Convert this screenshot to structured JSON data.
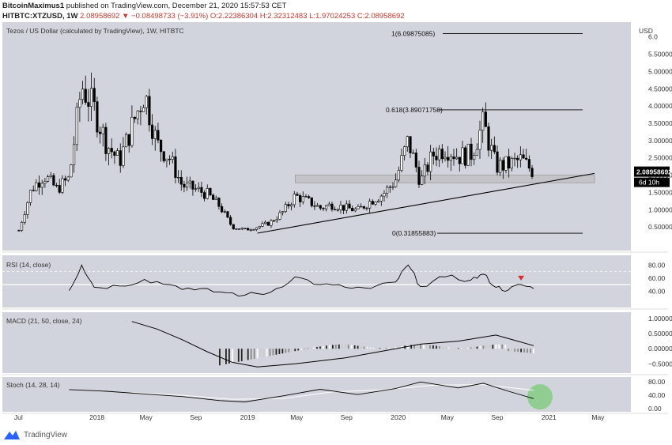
{
  "header": {
    "publisher": "BitcoinMaximus1",
    "published_text": "published on TradingView.com, December 21, 2020 15:57:53 CET",
    "symbol": "HITBTC:XTZUSD, 1W",
    "last": "2.08958692",
    "change": "−0.08498733 (−3.91%)",
    "open": "O:2.22386304",
    "high": "H:2.32312483",
    "low": "L:1.97024253",
    "close": "C:2.08958692"
  },
  "footer": {
    "brand": "TradingView"
  },
  "colors": {
    "pane_bg": "#d1d4dc",
    "candle": "#000000",
    "accent_red": "#d0312d",
    "highlight_green": "#7ecb7e"
  },
  "chart_data": [
    {
      "type": "candlestick",
      "title": "Tezos / US Dollar (calculated by TradingView), 1W, HITBTC",
      "ylabel": "USD",
      "ylim": [
        0,
        6.2
      ],
      "yticks": [
        "6.0",
        "5.50000000",
        "5.00000000",
        "4.50000000",
        "4.00000000",
        "3.50000000",
        "3.00000000",
        "2.50000000",
        "2.00000000",
        "1.50000000",
        "1.00000000",
        "0.50000000"
      ],
      "last_price_label": "2.08958692",
      "countdown_label": "6d 10h",
      "x_ticks": [
        "Jul",
        "2018",
        "May",
        "Sep",
        "2019",
        "May",
        "Sep",
        "2020",
        "May",
        "Sep",
        "2021",
        "May"
      ],
      "fib_levels": [
        {
          "label": "1(6.09875085)",
          "value": 6.09875085
        },
        {
          "label": "0.618(3.89071750)",
          "value": 3.8907175
        },
        {
          "label": "0(0.31855883)",
          "value": 0.31855883
        }
      ],
      "support_zone": {
        "low": 1.78,
        "high": 2.0,
        "start": "2019-05"
      },
      "ascending_trendline": {
        "from": [
          "2019-02",
          0.32
        ],
        "to": [
          "2021-03",
          2.05
        ]
      },
      "price_path": [
        [
          "2017-07",
          0.4
        ],
        [
          "2017-08",
          1.6
        ],
        [
          "2017-09",
          2.0
        ],
        [
          "2017-10",
          1.6
        ],
        [
          "2017-11",
          1.9
        ],
        [
          "2017-12",
          4.6
        ],
        [
          "2018-01",
          3.9
        ],
        [
          "2018-02",
          2.9
        ],
        [
          "2018-03",
          2.4
        ],
        [
          "2018-04",
          3.4
        ],
        [
          "2018-05",
          4.4
        ],
        [
          "2018-06",
          2.9
        ],
        [
          "2018-07",
          2.5
        ],
        [
          "2018-08",
          1.7
        ],
        [
          "2018-09",
          1.6
        ],
        [
          "2018-10",
          1.45
        ],
        [
          "2018-11",
          1.1
        ],
        [
          "2018-12",
          0.5
        ],
        [
          "2019-01",
          0.42
        ],
        [
          "2019-02",
          0.5
        ],
        [
          "2019-03",
          0.62
        ],
        [
          "2019-04",
          0.92
        ],
        [
          "2019-05",
          1.4
        ],
        [
          "2019-06",
          1.25
        ],
        [
          "2019-07",
          1.05
        ],
        [
          "2019-08",
          1.15
        ],
        [
          "2019-09",
          1.05
        ],
        [
          "2019-10",
          0.98
        ],
        [
          "2019-11",
          1.25
        ],
        [
          "2019-12",
          1.45
        ],
        [
          "2020-01",
          1.85
        ],
        [
          "2020-02",
          3.0
        ],
        [
          "2020-03",
          1.8
        ],
        [
          "2020-04",
          2.6
        ],
        [
          "2020-05",
          2.8
        ],
        [
          "2020-06",
          2.55
        ],
        [
          "2020-07",
          2.6
        ],
        [
          "2020-08",
          3.5
        ],
        [
          "2020-09",
          2.25
        ],
        [
          "2020-10",
          2.3
        ],
        [
          "2020-11",
          2.45
        ],
        [
          "2020-12",
          2.09
        ]
      ]
    },
    {
      "type": "line",
      "title": "RSI (14, close)",
      "ylim": [
        20,
        90
      ],
      "yticks": [
        "80.00",
        "60.00",
        "40.00"
      ],
      "levels": [
        70,
        50
      ],
      "x": [
        "2017-11",
        "2017-12",
        "2018-01",
        "2018-03",
        "2018-05",
        "2018-07",
        "2018-09",
        "2018-11",
        "2019-01",
        "2019-03",
        "2019-05",
        "2019-07",
        "2019-09",
        "2019-11",
        "2020-01",
        "2020-02",
        "2020-03",
        "2020-05",
        "2020-07",
        "2020-08",
        "2020-09",
        "2020-10",
        "2020-11",
        "2020-12"
      ],
      "values": [
        41,
        80,
        46,
        48,
        58,
        50,
        42,
        39,
        34,
        38,
        62,
        50,
        46,
        44,
        54,
        80,
        47,
        62,
        57,
        66,
        46,
        42,
        50,
        44
      ],
      "annotations": [
        {
          "type": "bearish-divergence-marker",
          "x": "2020-11",
          "color": "#d0312d"
        }
      ]
    },
    {
      "type": "histogram+line",
      "title": "MACD (21, 50, close, 24)",
      "yticks": [
        "1.00000000",
        "0.50000000",
        "0.00000000",
        "−0.50000000"
      ],
      "ylim": [
        -0.7,
        1.1
      ],
      "macd_line": {
        "x": [
          "2018-04",
          "2018-06",
          "2018-08",
          "2018-10",
          "2018-12",
          "2019-02",
          "2019-05",
          "2019-09",
          "2020-01",
          "2020-03",
          "2020-06",
          "2020-09",
          "2020-12"
        ],
        "values": [
          0.9,
          0.65,
          0.3,
          -0.1,
          -0.45,
          -0.6,
          -0.5,
          -0.3,
          0.0,
          0.15,
          0.25,
          0.45,
          0.1
        ]
      },
      "histogram_colors": [
        "#222222",
        "#888888",
        "#cccccc",
        "#ffffff"
      ]
    },
    {
      "type": "line",
      "title": "Stoch (14, 28, 14)",
      "ylim": [
        -5,
        90
      ],
      "yticks": [
        "80.00",
        "40.00",
        "0.00"
      ],
      "k_line": {
        "x": [
          "2017-11",
          "2018-02",
          "2018-05",
          "2018-08",
          "2018-11",
          "2019-01",
          "2019-04",
          "2019-07",
          "2019-10",
          "2020-01",
          "2020-03",
          "2020-06",
          "2020-08",
          "2020-10",
          "2020-12"
        ],
        "values": [
          57,
          52,
          44,
          36,
          24,
          20,
          38,
          58,
          42,
          60,
          80,
          62,
          76,
          52,
          30
        ]
      },
      "d_line": {
        "x": [
          "2018-04",
          "2018-08",
          "2018-12",
          "2019-04",
          "2019-08",
          "2019-12",
          "2020-04",
          "2020-08",
          "2020-12"
        ],
        "values": [
          48,
          40,
          28,
          30,
          50,
          56,
          70,
          72,
          55
        ]
      },
      "highlight": {
        "x": "2020-12",
        "color": "#7ecb7e"
      }
    }
  ]
}
